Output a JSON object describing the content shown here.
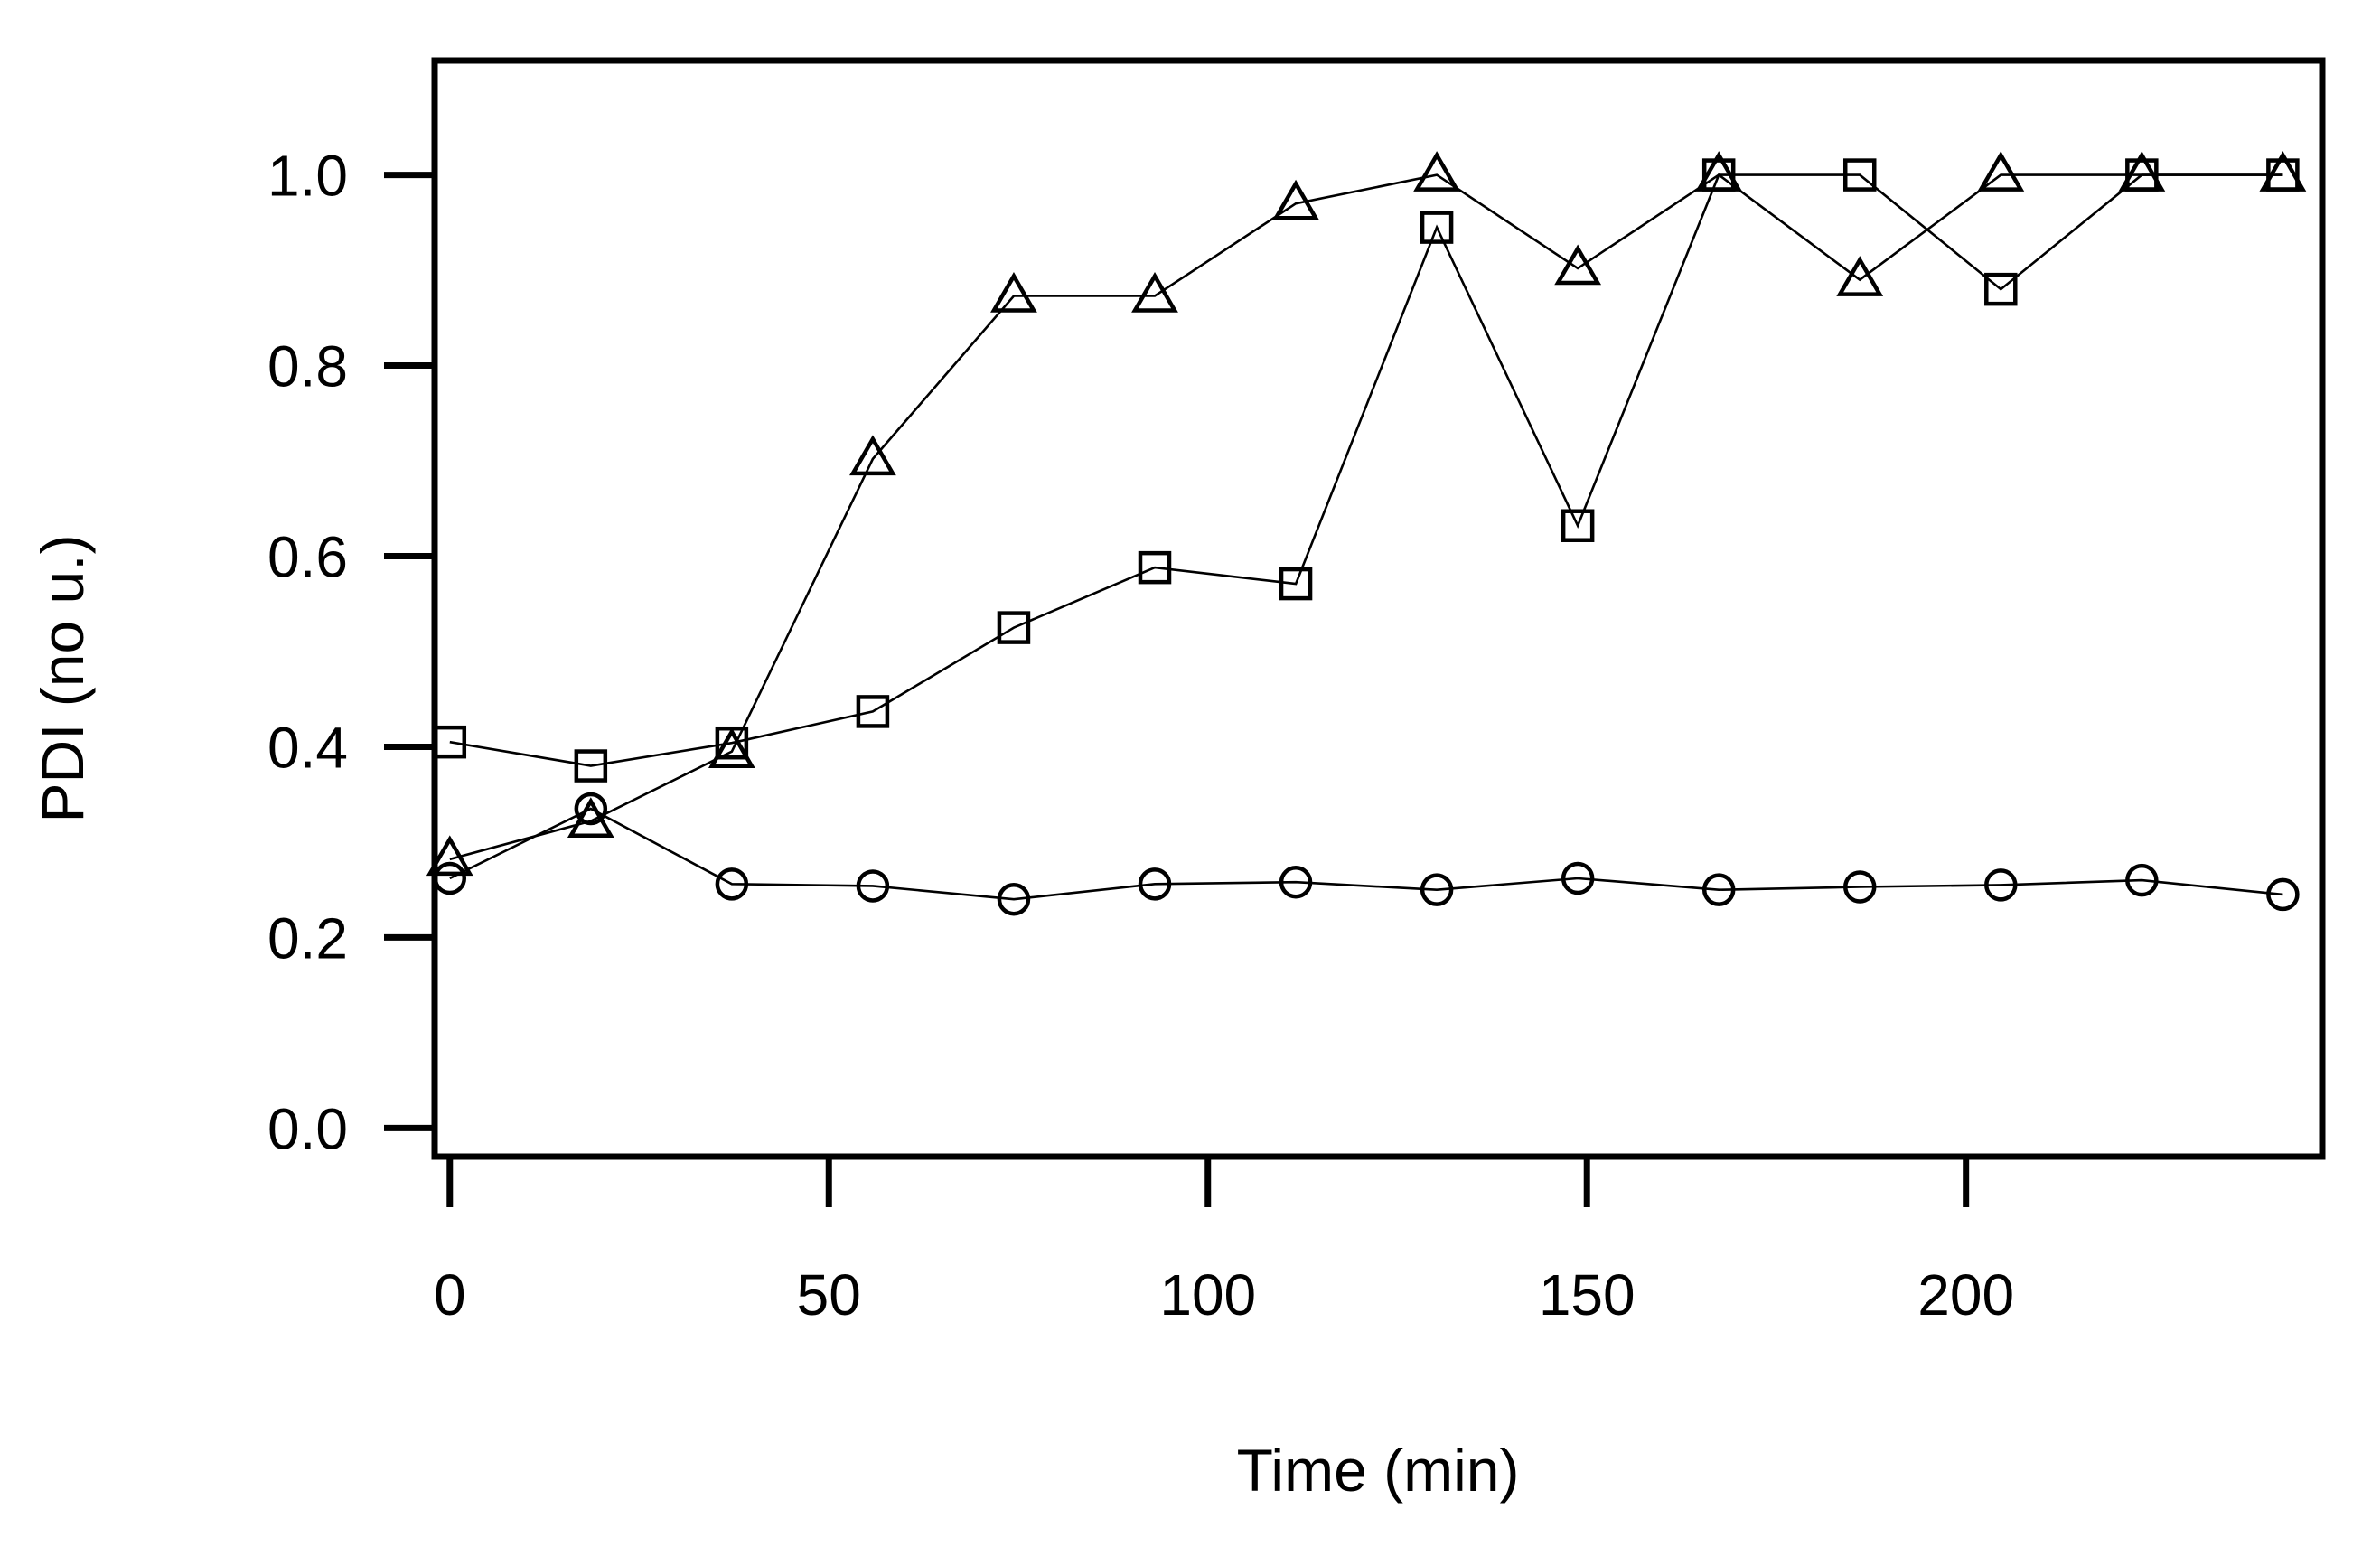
{
  "chart_data": {
    "type": "line",
    "title": "",
    "xlabel": "Time (min)",
    "ylabel": "PDI (no u.)",
    "xlim": [
      -2,
      247
    ],
    "ylim": [
      -0.03,
      1.12
    ],
    "xticks": [
      0,
      50,
      100,
      150,
      200
    ],
    "xtick_labels": [
      "0",
      "50",
      "100",
      "150",
      "200"
    ],
    "yticks": [
      0.0,
      0.2,
      0.4,
      0.6,
      0.8,
      1.0
    ],
    "ytick_labels": [
      "0.0",
      "0.2",
      "0.4",
      "0.6",
      "0.8",
      "1.0"
    ],
    "grid": false,
    "legend": "none",
    "series": [
      {
        "name": "circles",
        "marker": "circle",
        "x": [
          0,
          18.6,
          37.2,
          55.8,
          74.4,
          93,
          111.6,
          130.2,
          148.8,
          167.4,
          186,
          204.6,
          223.2,
          241.8
        ],
        "values": [
          0.262,
          0.335,
          0.256,
          0.254,
          0.24,
          0.256,
          0.258,
          0.25,
          0.262,
          0.25,
          0.253,
          0.255,
          0.26,
          0.245
        ]
      },
      {
        "name": "squares",
        "marker": "square",
        "x": [
          0,
          18.6,
          37.2,
          55.8,
          74.4,
          93,
          111.6,
          130.2,
          148.8,
          167.4,
          186,
          204.6,
          223.2,
          241.8
        ],
        "values": [
          0.405,
          0.38,
          0.404,
          0.437,
          0.525,
          0.588,
          0.571,
          0.945,
          0.632,
          1.0,
          1.0,
          0.88,
          1.0,
          1.0
        ]
      },
      {
        "name": "triangles",
        "marker": "triangle",
        "x": [
          0,
          18.6,
          37.2,
          55.8,
          74.4,
          93,
          111.6,
          130.2,
          148.8,
          167.4,
          186,
          204.6,
          223.2,
          241.8
        ],
        "values": [
          0.282,
          0.322,
          0.395,
          0.702,
          0.873,
          0.873,
          0.97,
          1.0,
          0.902,
          1.0,
          0.89,
          1.0,
          1.0,
          1.0
        ]
      }
    ]
  }
}
